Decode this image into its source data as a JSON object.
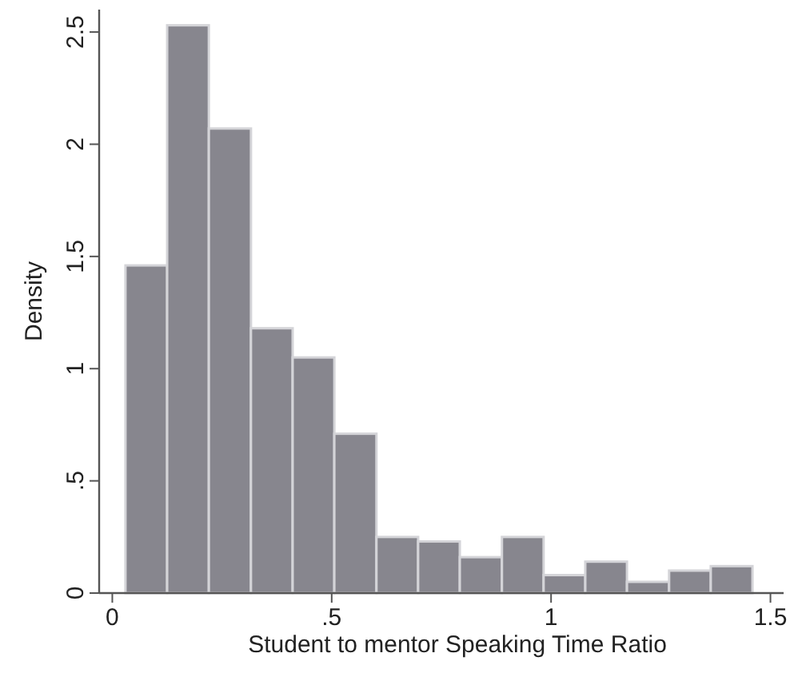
{
  "chart_data": {
    "type": "histogram",
    "xlabel": "Student to mentor Speaking Time Ratio",
    "ylabel": "Density",
    "bins": [
      0.03,
      0.125,
      0.22,
      0.316,
      0.411,
      0.506,
      0.602,
      0.697,
      0.792,
      0.888,
      0.983,
      1.078,
      1.173,
      1.269,
      1.364,
      1.459
    ],
    "values": [
      1.46,
      2.53,
      2.07,
      1.18,
      1.05,
      0.71,
      0.25,
      0.23,
      0.16,
      0.25,
      0.08,
      0.14,
      0.05,
      0.1,
      0.12
    ],
    "color": "#87868e",
    "xlim": [
      -0.03,
      1.53
    ],
    "xticks": [
      0,
      {
        "value": 0.5,
        "label": ".5"
      },
      1,
      1.5
    ],
    "ylim": [
      0,
      2.6
    ],
    "yticks": [
      0,
      {
        "value": 0.5,
        "label": ".5"
      },
      1,
      1.5,
      2,
      2.5
    ],
    "grid": false
  }
}
